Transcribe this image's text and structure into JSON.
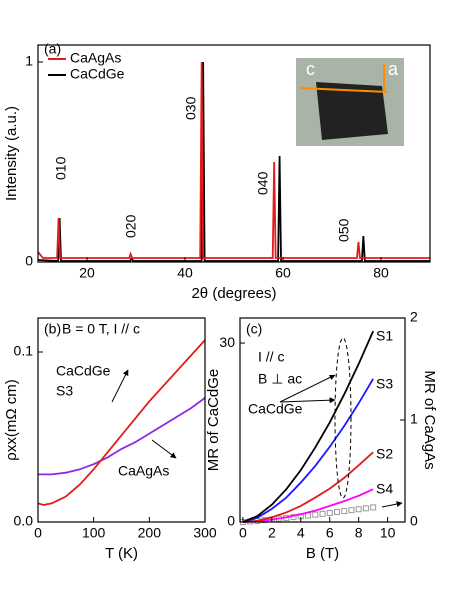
{
  "chart_data": [
    {
      "type": "line",
      "x_label": "2θ (degrees)",
      "y_label": "Intensity (a.u.)",
      "xlim": [
        10,
        90
      ],
      "xticks": [
        20,
        40,
        60,
        80
      ],
      "ylim": [
        0,
        1.085
      ],
      "yticks": [
        0,
        1
      ],
      "legend": "upper left",
      "annotations": [
        "(a)",
        "010",
        "020",
        "030",
        "040",
        "050",
        "c",
        "a"
      ],
      "series": [
        {
          "name": "CaAgAs",
          "color": "#e41a1c",
          "x": [
            10,
            11,
            13.9,
            14.2,
            14.5,
            28.6,
            28.9,
            29.2,
            43.1,
            43.4,
            43.7,
            57.9,
            58.2,
            58.5,
            75.1,
            75.4,
            75.7,
            90
          ],
          "values": [
            0.05,
            0.02,
            0.02,
            0.22,
            0.02,
            0.02,
            0.04,
            0.02,
            0.02,
            1.0,
            0.02,
            0.02,
            0.5,
            0.02,
            0.02,
            0.1,
            0.02,
            0.02
          ]
        },
        {
          "name": "CaCdGe",
          "color": "#000000",
          "x": [
            10,
            14.1,
            14.4,
            14.7,
            28.8,
            29.1,
            29.4,
            43.4,
            43.7,
            44.0,
            59.0,
            59.3,
            59.6,
            76.1,
            76.4,
            76.7,
            90
          ],
          "values": [
            0.01,
            0.005,
            0.22,
            0.005,
            0.005,
            0.02,
            0.005,
            0.005,
            1.0,
            0.005,
            0.005,
            0.53,
            0.005,
            0.005,
            0.13,
            0.005,
            0.005
          ]
        }
      ]
    },
    {
      "type": "line",
      "x_label": "T (K)",
      "y_label": "ρxx(mΩ cm)",
      "xlim": [
        0,
        300
      ],
      "xticks": [
        0,
        100,
        200,
        300
      ],
      "ylim": [
        0,
        0.12
      ],
      "yticks": [
        {
          "value": 0,
          "label": "0.0"
        },
        0.1
      ],
      "legend": "inline",
      "annotations": [
        "(b)",
        "B = 0 T, I // c",
        "S3"
      ],
      "x": [
        0,
        10,
        25,
        50,
        75,
        100,
        125,
        150,
        175,
        200,
        225,
        250,
        275,
        300
      ],
      "series": [
        {
          "name": "CaCdGe",
          "color": "#e41a1c",
          "values": [
            0.011,
            0.01,
            0.011,
            0.015,
            0.022,
            0.031,
            0.041,
            0.051,
            0.061,
            0.071,
            0.08,
            0.089,
            0.098,
            0.107
          ]
        },
        {
          "name": "CaAgAs",
          "color": "#8a2be2",
          "values": [
            0.028,
            0.028,
            0.028,
            0.029,
            0.031,
            0.034,
            0.038,
            0.043,
            0.047,
            0.052,
            0.057,
            0.062,
            0.067,
            0.073
          ]
        }
      ]
    },
    {
      "type": "line",
      "x_label": "B (T)",
      "y_label": "MR of CaCdGe",
      "y2_label": "MR of CaAgAs",
      "xlim": [
        -0.2,
        11.2
      ],
      "xticks": [
        0,
        2,
        4,
        6,
        8,
        10
      ],
      "ylim": [
        0,
        34.2
      ],
      "yticks": [
        0,
        30
      ],
      "y2lim": [
        0,
        2
      ],
      "y2ticks": [
        0,
        1,
        2
      ],
      "legend": "inline",
      "annotations": [
        "(c)",
        "I // c",
        "B ⊥ ac",
        "CaCdGe"
      ],
      "x": [
        0,
        1,
        2,
        3,
        4,
        5,
        6,
        7,
        8,
        9
      ],
      "series": [
        {
          "name": "S1",
          "color": "#000000",
          "values": [
            0,
            1.0,
            2.9,
            5.5,
            8.7,
            12.5,
            16.7,
            21.4,
            26.5,
            32
          ]
        },
        {
          "name": "S3",
          "color": "#1a1aff",
          "values": [
            0,
            0.7,
            2.2,
            4.1,
            6.6,
            9.4,
            12.6,
            16.1,
            19.9,
            24
          ]
        },
        {
          "name": "S2",
          "color": "#e41a1c",
          "values": [
            0,
            0.2,
            0.8,
            1.6,
            2.7,
            4.1,
            5.6,
            7.4,
            9.5,
            11.7
          ]
        },
        {
          "name": "S4",
          "color": "#ff00ff",
          "values": [
            0,
            0.1,
            0.4,
            0.8,
            1.3,
            1.9,
            2.7,
            3.5,
            4.4,
            5.5
          ]
        },
        {
          "color": "#999999",
          "axis": "y2",
          "style": "markers",
          "x": [
            0,
            0.5,
            1,
            1.5,
            2,
            2.5,
            3,
            3.5,
            4,
            4.5,
            5,
            5.5,
            6,
            6.5,
            7,
            7.5,
            8,
            8.5,
            9
          ],
          "values": [
            0,
            0.005,
            0.01,
            0.018,
            0.025,
            0.033,
            0.04,
            0.048,
            0.056,
            0.064,
            0.072,
            0.08,
            0.089,
            0.098,
            0.107,
            0.116,
            0.125,
            0.134,
            0.143
          ]
        }
      ]
    }
  ]
}
